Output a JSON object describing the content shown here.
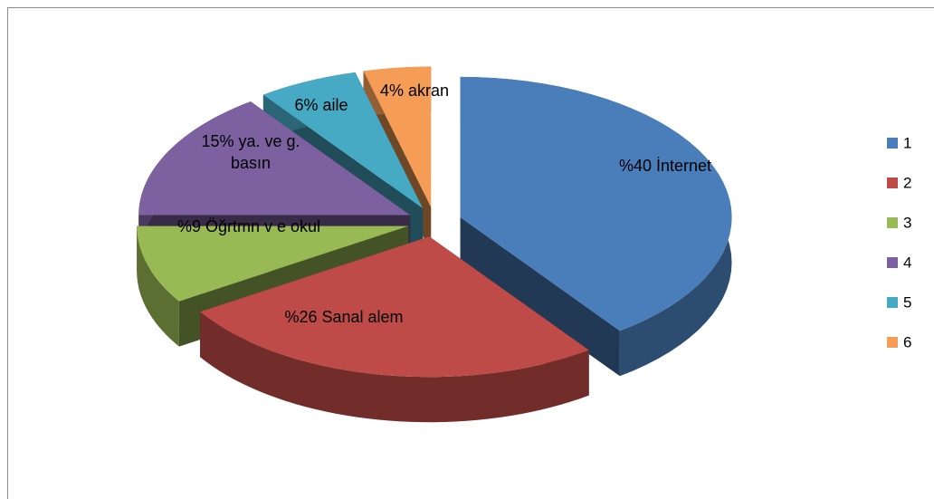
{
  "chart_data": {
    "type": "pie",
    "categories": [
      "1",
      "2",
      "3",
      "4",
      "5",
      "6"
    ],
    "values": [
      40,
      26,
      9,
      15,
      6,
      4
    ],
    "value_labels": [
      "%40 İnternet",
      "%26 Sanal alem",
      "%9 Öğrtmn v e okul",
      "15% ya. ve g. basın",
      "6% aile",
      "4% akran"
    ],
    "colors": [
      "#4a7ebb",
      "#be4b48",
      "#98b954",
      "#7d60a0",
      "#46aac5",
      "#f59d56"
    ],
    "legend": "right"
  }
}
